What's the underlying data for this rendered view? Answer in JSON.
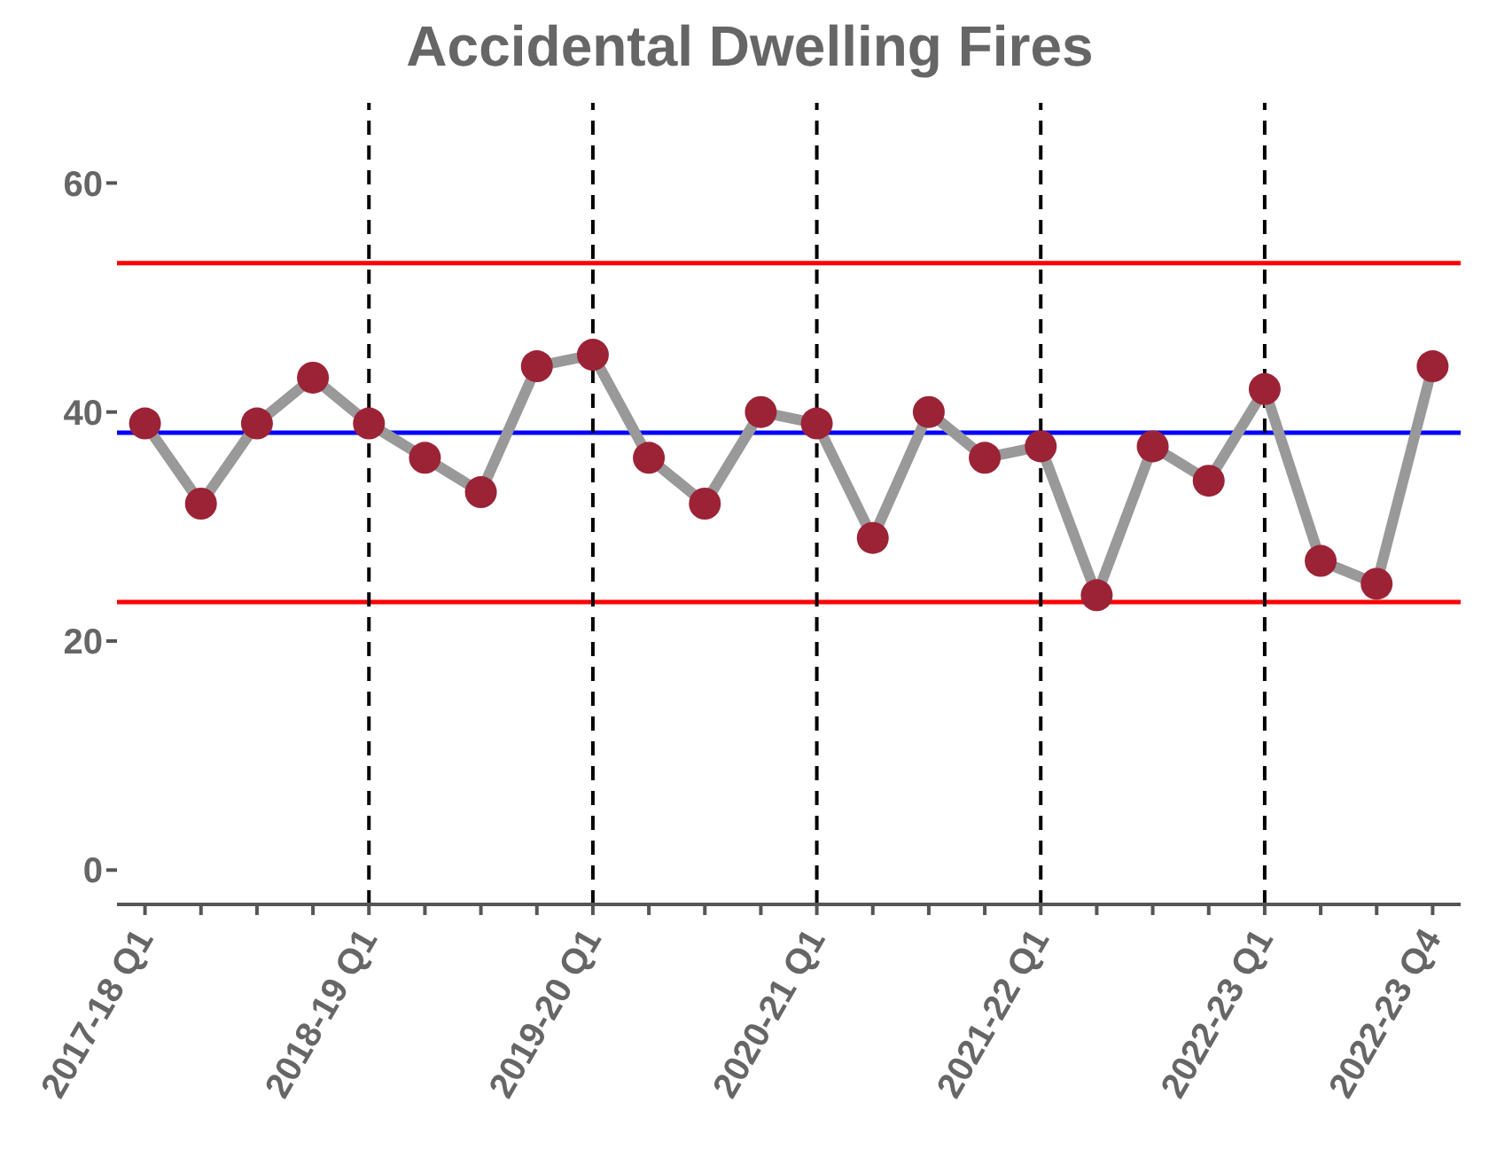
{
  "chart_data": {
    "type": "line",
    "title": "Accidental Dwelling Fires",
    "categories": [
      "2017-18 Q1",
      null,
      null,
      null,
      "2018-19 Q1",
      null,
      null,
      null,
      "2019-20 Q1",
      null,
      null,
      null,
      "2020-21 Q1",
      null,
      null,
      null,
      "2021-22 Q1",
      null,
      null,
      null,
      "2022-23 Q1",
      null,
      null,
      "2022-23 Q4"
    ],
    "series": [
      {
        "color": "#999999",
        "colors": [
          "#9b2335",
          "#9b2335",
          "#9b2335",
          "#9b2335",
          "#9b2335",
          "#9b2335",
          "#9b2335",
          "#9b2335",
          "#9b2335",
          "#9b2335",
          "#9b2335",
          "#9b2335",
          "#9b2335",
          "#9b2335",
          "#9b2335",
          "#9b2335",
          "#9b2335",
          "#9b2335",
          "#9b2335",
          "#9b2335",
          "#9b2335",
          "#9b2335",
          "#9b2335",
          "#9b2335"
        ],
        "values": [
          39,
          32,
          39,
          43,
          39,
          36,
          33,
          44,
          45,
          36,
          32,
          40,
          39,
          29,
          40,
          36,
          37,
          24,
          37,
          34,
          42,
          27,
          25,
          44
        ]
      }
    ],
    "ylim": [
      -3,
      67
    ],
    "yticks": [
      0,
      20,
      40,
      60
    ],
    "grid": false,
    "legend": false,
    "marker": "circle",
    "line_style": "solid",
    "ref_lines": [
      {
        "axis": "y",
        "value": 53,
        "color": "#ff0000",
        "line_style": "solid"
      },
      {
        "axis": "y",
        "value": 23.4,
        "color": "#ff0000",
        "line_style": "solid"
      },
      {
        "axis": "y",
        "value": 38.2,
        "color": "#0000ff",
        "line_style": "solid"
      },
      {
        "axis": "x",
        "value": "2018-19 Q1",
        "color": "#000000",
        "line_style": "dashed"
      },
      {
        "axis": "x",
        "value": "2019-20 Q1",
        "color": "#000000",
        "line_style": "dashed"
      },
      {
        "axis": "x",
        "value": "2020-21 Q1",
        "color": "#000000",
        "line_style": "dashed"
      },
      {
        "axis": "x",
        "value": "2021-22 Q1",
        "color": "#000000",
        "line_style": "dashed"
      },
      {
        "axis": "x",
        "value": "2022-23 Q1",
        "color": "#000000",
        "line_style": "dashed"
      }
    ]
  }
}
